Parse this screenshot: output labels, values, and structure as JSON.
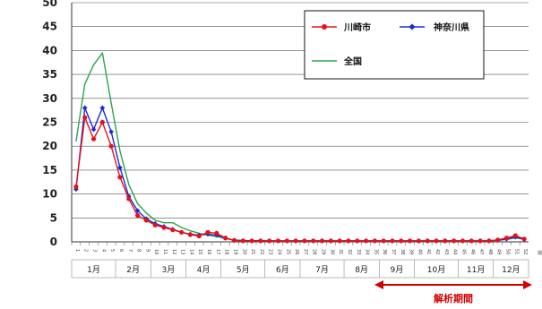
{
  "chart_data": {
    "type": "line",
    "ylim": [
      0,
      50
    ],
    "yticks": [
      "0",
      "5",
      "10",
      "15",
      "20",
      "25",
      "30",
      "35",
      "40",
      "45",
      "50"
    ],
    "x_axis_unit": "週",
    "weeks": [
      "1",
      "2",
      "3",
      "4",
      "5",
      "6",
      "7",
      "8",
      "9",
      "10",
      "11",
      "12",
      "13",
      "14",
      "15",
      "16",
      "17",
      "18",
      "19",
      "20",
      "21",
      "22",
      "23",
      "24",
      "25",
      "26",
      "27",
      "28",
      "29",
      "30",
      "31",
      "32",
      "33",
      "34",
      "35",
      "36",
      "37",
      "38",
      "39",
      "40",
      "41",
      "42",
      "43",
      "44",
      "45",
      "46",
      "47",
      "48",
      "49",
      "50",
      "51",
      "52"
    ],
    "months": [
      "1月",
      "2月",
      "3月",
      "4月",
      "5月",
      "6月",
      "7月",
      "8月",
      "9月",
      "10月",
      "11月",
      "12月"
    ],
    "series": [
      {
        "name": "川崎市",
        "color": "#e8101a",
        "marker": "circle",
        "values": [
          11.5,
          26,
          21.5,
          25,
          20,
          13.5,
          9,
          5.5,
          4.5,
          3.5,
          3,
          2.5,
          2,
          1.5,
          1.2,
          2,
          1.8,
          0.8,
          0.3,
          0.2,
          0.2,
          0.2,
          0.2,
          0.2,
          0.2,
          0.2,
          0.2,
          0.2,
          0.2,
          0.2,
          0.2,
          0.2,
          0.2,
          0.2,
          0.2,
          0.2,
          0.2,
          0.2,
          0.2,
          0.2,
          0.2,
          0.2,
          0.2,
          0.2,
          0.2,
          0.2,
          0.2,
          0.2,
          0.4,
          0.8,
          1.3,
          0.6
        ]
      },
      {
        "name": "神奈川県",
        "color": "#1a2ad8",
        "marker": "diamond",
        "values": [
          11,
          28,
          23.5,
          28,
          23,
          15.5,
          9.5,
          6.5,
          4.8,
          3.8,
          3.2,
          2.6,
          2,
          1.6,
          1.4,
          1.6,
          1.4,
          0.8,
          0.3,
          0.25,
          0.2,
          0.2,
          0.2,
          0.2,
          0.2,
          0.2,
          0.2,
          0.2,
          0.2,
          0.2,
          0.2,
          0.2,
          0.2,
          0.2,
          0.2,
          0.2,
          0.2,
          0.2,
          0.2,
          0.2,
          0.2,
          0.2,
          0.2,
          0.2,
          0.2,
          0.2,
          0.2,
          0.25,
          0.35,
          0.6,
          1,
          0.5
        ]
      },
      {
        "name": "全国",
        "color": "#2aa54a",
        "marker": "none",
        "values": [
          21,
          33,
          37,
          39.5,
          29,
          19,
          12,
          8,
          6,
          4.5,
          4,
          4,
          3,
          2.3,
          1.8,
          1.4,
          1.1,
          0.7,
          0.4,
          0.3,
          0.25,
          0.25,
          0.2,
          0.2,
          0.2,
          0.2,
          0.2,
          0.2,
          0.2,
          0.2,
          0.2,
          0.2,
          0.2,
          0.2,
          0.2,
          0.2,
          0.2,
          0.2,
          0.2,
          0.2,
          0.2,
          0.2,
          0.2,
          0.2,
          0.2,
          0.2,
          0.2,
          0.2,
          0.3,
          0.5,
          0.8,
          0.6
        ]
      }
    ],
    "annotation": {
      "text": "解析期間",
      "color": "#d40000"
    },
    "grid": "horizontal"
  }
}
